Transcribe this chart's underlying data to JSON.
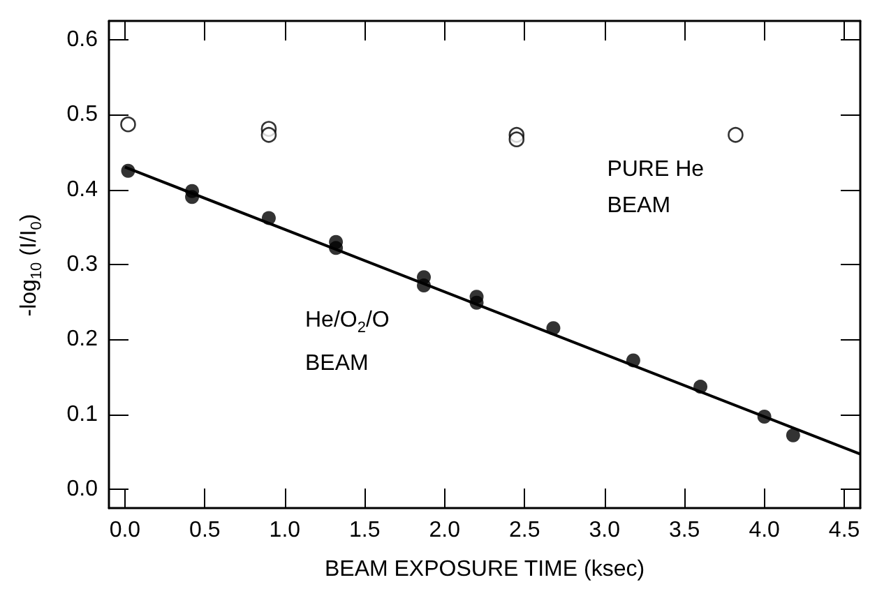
{
  "chart_data": {
    "type": "scatter",
    "xlabel": "BEAM EXPOSURE TIME (ksec)",
    "ylabel": "-log$_{10}$ (I/I$_{0}$)",
    "xlim": [
      -0.1,
      4.6
    ],
    "xticks": [
      {
        "value": 0,
        "label": "0.0"
      },
      {
        "value": 0.5,
        "label": "0.5"
      },
      {
        "value": 1,
        "label": "1.0"
      },
      {
        "value": 1.5,
        "label": "1.5"
      },
      {
        "value": 2,
        "label": "2.0"
      },
      {
        "value": 2.5,
        "label": "2.5"
      },
      {
        "value": 3,
        "label": "3.0"
      },
      {
        "value": 3.5,
        "label": "3.5"
      },
      {
        "value": 4,
        "label": "4.0"
      },
      {
        "value": 4.5,
        "label": "4.5"
      }
    ],
    "ylim": [
      -0.025,
      0.625
    ],
    "yticks": [
      {
        "value": 0,
        "label": "0.0"
      },
      {
        "value": 0.1,
        "label": "0.1"
      },
      {
        "value": 0.2,
        "label": "0.2"
      },
      {
        "value": 0.3,
        "label": "0.3"
      },
      {
        "value": 0.4,
        "label": "0.4"
      },
      {
        "value": 0.5,
        "label": "0.5"
      },
      {
        "value": 0.6,
        "label": "0.6"
      }
    ],
    "grid": false,
    "marker": "circle",
    "series": [
      {
        "color": "#000000",
        "x": [
          0.02,
          0.42,
          0.42,
          0.9,
          1.32,
          1.32,
          1.87,
          1.87,
          2.2,
          2.2,
          2.68,
          3.18,
          3.6,
          4.0,
          4.18
        ],
        "values": [
          0.425,
          0.398,
          0.39,
          0.362,
          0.33,
          0.322,
          0.283,
          0.272,
          0.257,
          0.249,
          0.215,
          0.172,
          0.137,
          0.097,
          0.072
        ]
      },
      {
        "color": "#000000",
        "x": [
          0.02,
          0.9,
          0.9,
          2.45,
          2.45,
          3.82
        ],
        "values": [
          0.487,
          0.481,
          0.473,
          0.473,
          0.467,
          0.473
        ]
      },
      {
        "type": "line",
        "color": "#000000",
        "marker": "none",
        "x": [
          0,
          4.6
        ],
        "values": [
          0.43,
          0.047
        ]
      }
    ],
    "annotations": [
      {
        "text": "PURE He\nBEAM",
        "x": 3.82,
        "y": 0.473
      },
      {
        "text": "He/O$_{2}$/O\nBEAM",
        "x": 1.87,
        "y": 0.272
      }
    ]
  }
}
